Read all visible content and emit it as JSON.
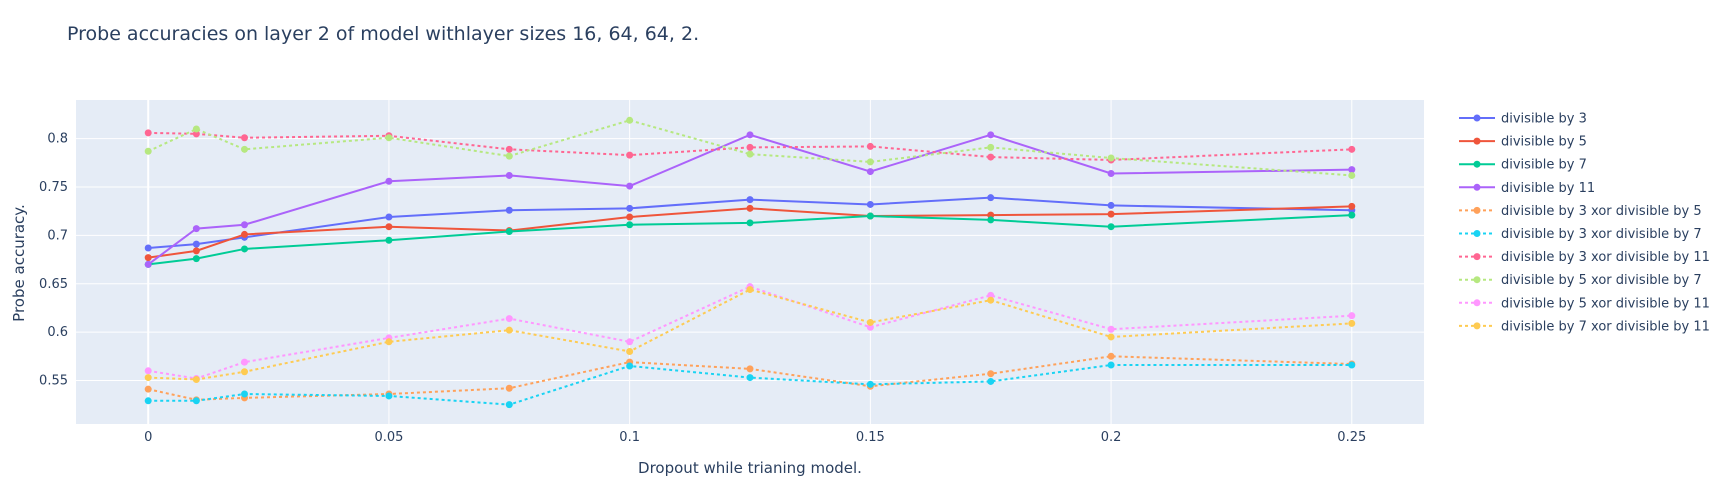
{
  "chart_data": {
    "type": "line",
    "title": "Probe accuracies on layer 2 of model withlayer sizes 16, 64, 64, 2.",
    "xlabel": "Dropout while trianing model.",
    "ylabel": "Probe accuracy.",
    "xlim": [
      -0.015,
      0.265
    ],
    "ylim": [
      0.505,
      0.84
    ],
    "x_ticks": [
      0,
      0.05,
      0.1,
      0.15,
      0.2,
      0.25
    ],
    "x_tick_labels": [
      "0",
      "0.05",
      "0.1",
      "0.15",
      "0.2",
      "0.25"
    ],
    "y_ticks": [
      0.55,
      0.6,
      0.65,
      0.7,
      0.75,
      0.8
    ],
    "y_tick_labels": [
      "0.55",
      "0.6",
      "0.65",
      "0.7",
      "0.75",
      "0.8"
    ],
    "grid": true,
    "legend_position": "right",
    "x": [
      0,
      0.01,
      0.02,
      0.05,
      0.075,
      0.1,
      0.125,
      0.15,
      0.175,
      0.2,
      0.25
    ],
    "series": [
      {
        "name": "divisible by 3",
        "color": "#636efa",
        "dash": "solid",
        "values": [
          0.687,
          0.691,
          0.698,
          0.719,
          0.726,
          0.728,
          0.737,
          0.732,
          0.739,
          0.731,
          0.726
        ]
      },
      {
        "name": "divisible by 5",
        "color": "#ef553b",
        "dash": "solid",
        "values": [
          0.677,
          0.684,
          0.701,
          0.709,
          0.705,
          0.719,
          0.728,
          0.72,
          0.721,
          0.722,
          0.73
        ]
      },
      {
        "name": "divisible by 7",
        "color": "#00cc96",
        "dash": "solid",
        "values": [
          0.67,
          0.676,
          0.686,
          0.695,
          0.704,
          0.711,
          0.713,
          0.72,
          0.716,
          0.709,
          0.721
        ]
      },
      {
        "name": "divisible by 11",
        "color": "#ab63fa",
        "dash": "solid",
        "values": [
          0.67,
          0.707,
          0.711,
          0.756,
          0.762,
          0.751,
          0.804,
          0.766,
          0.804,
          0.764,
          0.768
        ]
      },
      {
        "name": "divisible by 3 xor divisible by 5",
        "color": "#ffa15a",
        "dash": "dot",
        "values": [
          0.541,
          0.53,
          0.532,
          0.536,
          0.542,
          0.569,
          0.562,
          0.544,
          0.557,
          0.575,
          0.567
        ]
      },
      {
        "name": "divisible by 3 xor divisible by 7",
        "color": "#19d3f3",
        "dash": "dot",
        "values": [
          0.529,
          0.529,
          0.536,
          0.534,
          0.525,
          0.565,
          0.553,
          0.546,
          0.549,
          0.566,
          0.566
        ]
      },
      {
        "name": "divisible by 3 xor divisible by 11",
        "color": "#ff6692",
        "dash": "dot",
        "values": [
          0.806,
          0.805,
          0.801,
          0.803,
          0.789,
          0.783,
          0.791,
          0.792,
          0.781,
          0.778,
          0.789
        ]
      },
      {
        "name": "divisible by 5 xor divisible by 7",
        "color": "#b6e880",
        "dash": "dot",
        "values": [
          0.787,
          0.81,
          0.789,
          0.801,
          0.782,
          0.819,
          0.784,
          0.776,
          0.791,
          0.78,
          0.762
        ]
      },
      {
        "name": "divisible by 5 xor divisible by 11",
        "color": "#ff97ff",
        "dash": "dot",
        "values": [
          0.56,
          0.552,
          0.569,
          0.594,
          0.614,
          0.59,
          0.647,
          0.605,
          0.638,
          0.603,
          0.617
        ]
      },
      {
        "name": "divisible by 7 xor divisible by 11",
        "color": "#fecb52",
        "dash": "dot",
        "values": [
          0.553,
          0.551,
          0.559,
          0.59,
          0.602,
          0.58,
          0.644,
          0.61,
          0.633,
          0.595,
          0.609
        ]
      }
    ]
  },
  "colors": {
    "plot_bg": "#e5ecf6",
    "grid": "#ffffff",
    "text": "#2a3f5f"
  }
}
